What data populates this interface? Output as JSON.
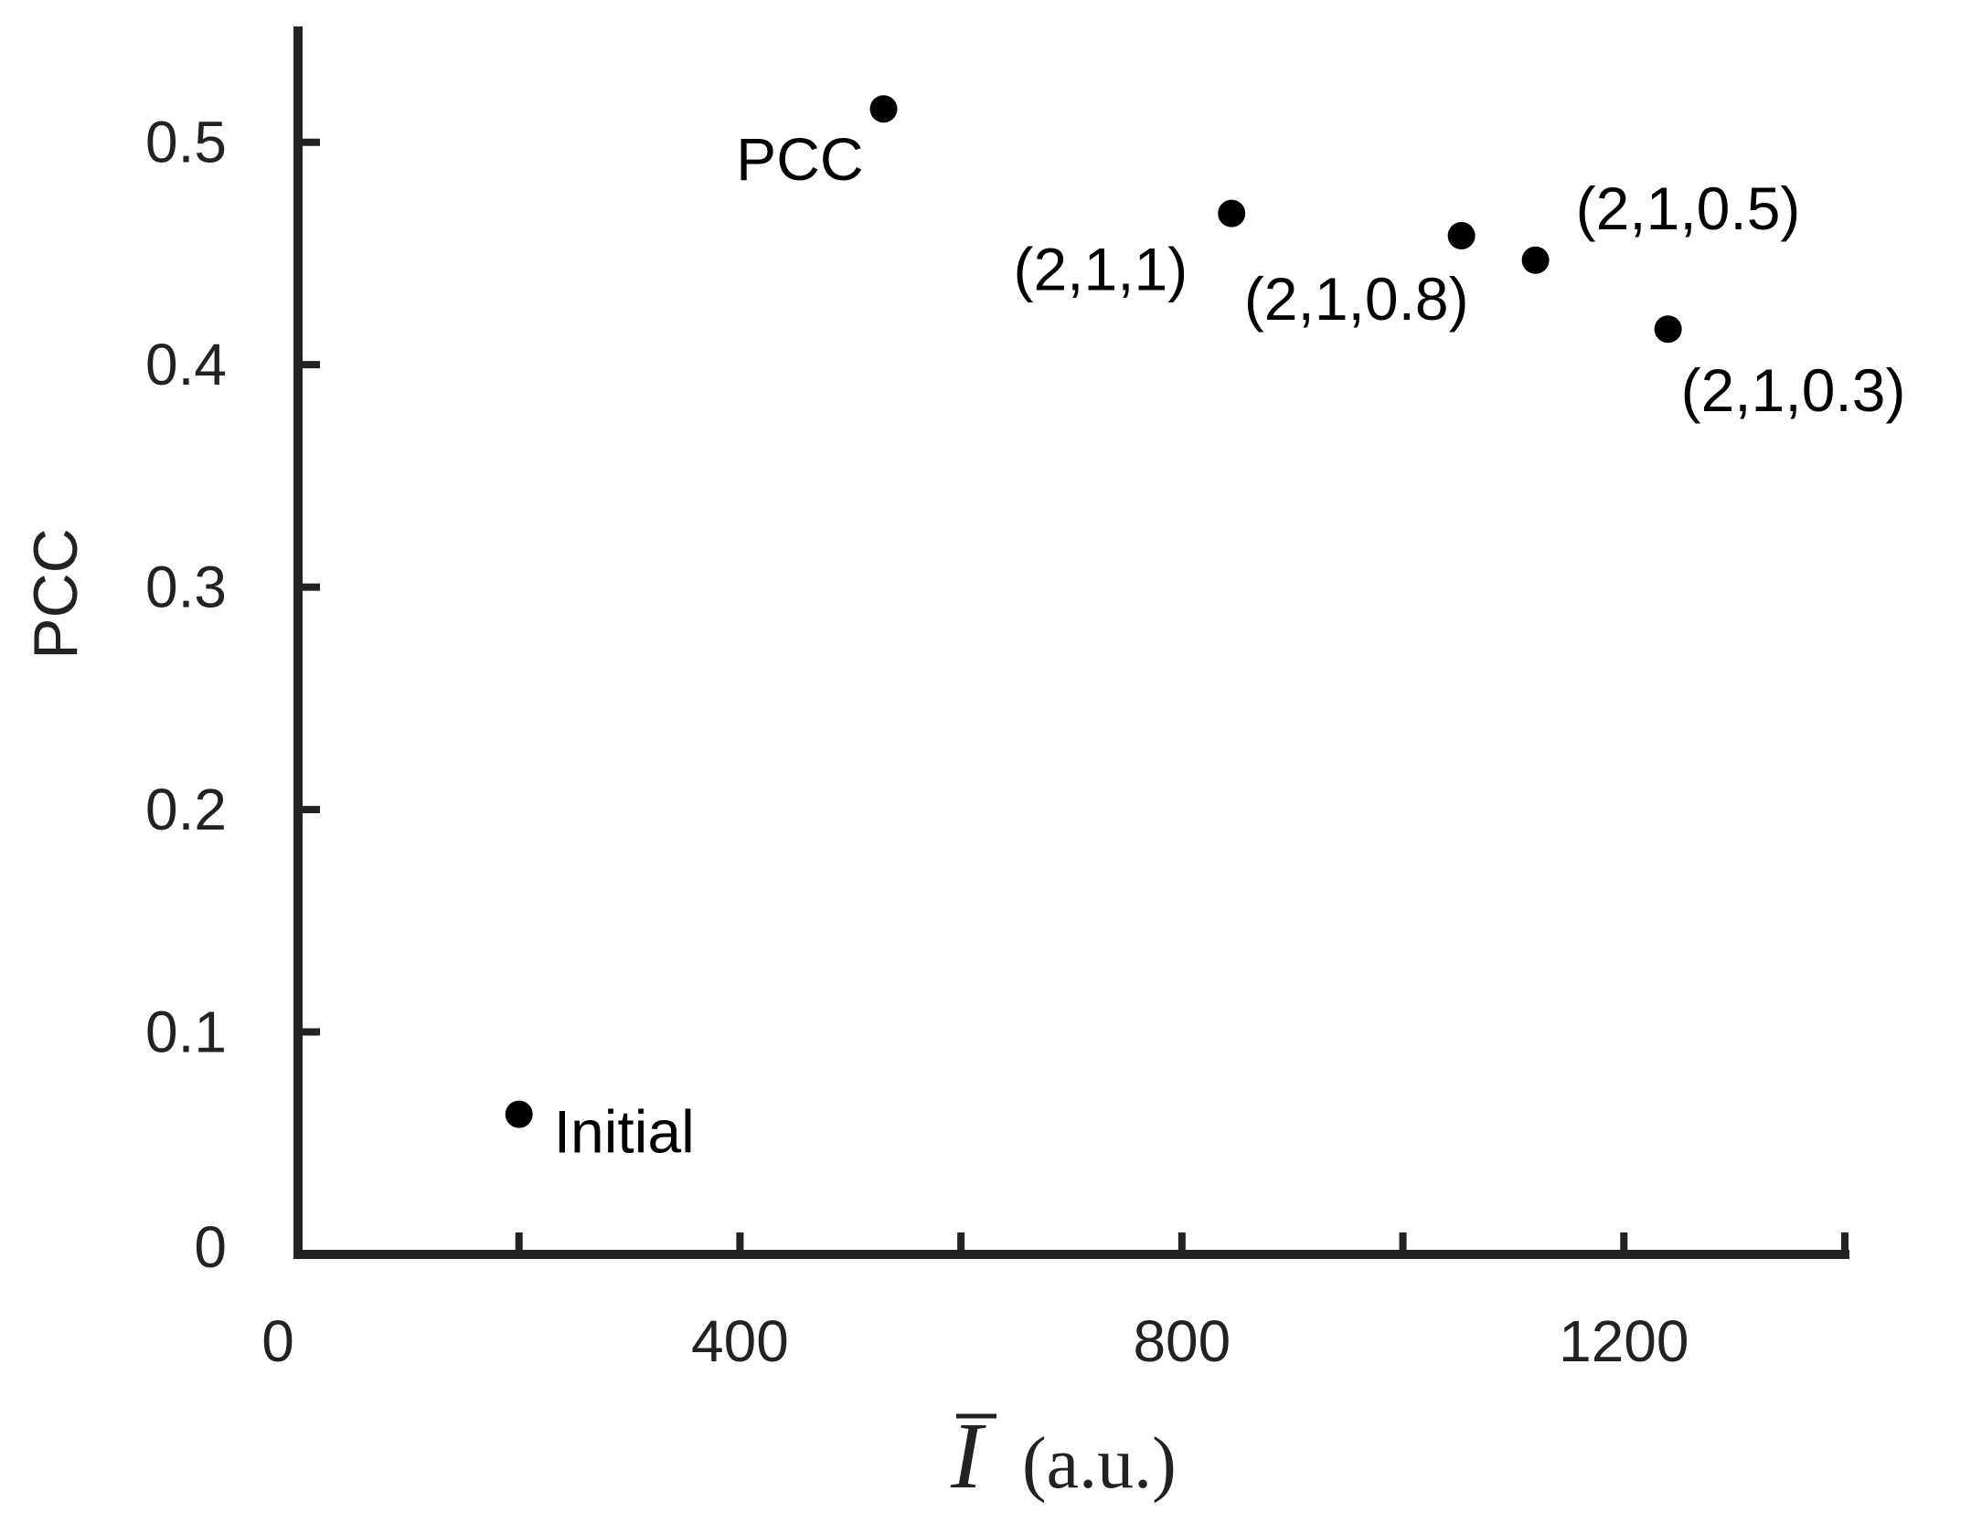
{
  "chart_data": {
    "type": "scatter",
    "xlabel_symbol": "I",
    "xlabel_unit": "(a.u.)",
    "ylabel": "PCC",
    "xlim": [
      0,
      1400
    ],
    "ylim": [
      0,
      0.55
    ],
    "x_ticks": [
      0,
      200,
      400,
      600,
      800,
      1000,
      1200,
      1400
    ],
    "x_tick_labels": [
      "0",
      "",
      "400",
      "",
      "800",
      "",
      "1200",
      ""
    ],
    "y_ticks": [
      0,
      0.1,
      0.2,
      0.3,
      0.4,
      0.5
    ],
    "y_tick_labels": [
      "0",
      "0.1",
      "0.2",
      "0.3",
      "0.4",
      "0.5"
    ],
    "grid": false,
    "marker_color": "#000000",
    "points": [
      {
        "x": 200,
        "y": 0.063,
        "label": "Initial"
      },
      {
        "x": 530,
        "y": 0.515,
        "label": "PCC"
      },
      {
        "x": 845,
        "y": 0.468,
        "label": "(2,1,1)"
      },
      {
        "x": 1053,
        "y": 0.458,
        "label": "(2,1,0.8)"
      },
      {
        "x": 1120,
        "y": 0.447,
        "label": "(2,1,0.5)"
      },
      {
        "x": 1240,
        "y": 0.416,
        "label": "(2,1,0.3)"
      }
    ]
  }
}
